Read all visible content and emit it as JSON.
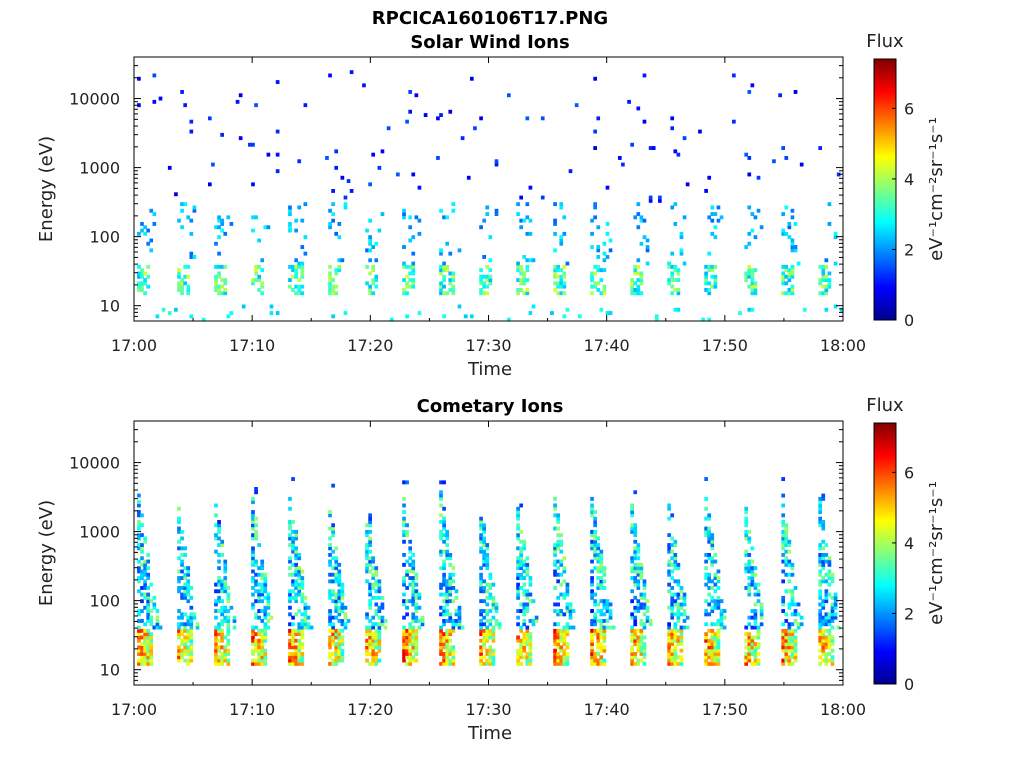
{
  "figure": {
    "title": "RPCICA160106T17.PNG"
  },
  "colorscale": {
    "stops": [
      "#00008f",
      "#0000ff",
      "#0080ff",
      "#00ffff",
      "#80ff80",
      "#ffff00",
      "#ff8000",
      "#ff0000",
      "#800000"
    ]
  },
  "chart_data": [
    {
      "type": "heatmap",
      "title": "Solar Wind Ions",
      "xlabel": "Time",
      "ylabel": "Energy (eV)",
      "x_range": [
        "17:00",
        "18:00"
      ],
      "x_ticks": [
        "17:00",
        "17:10",
        "17:20",
        "17:30",
        "17:40",
        "17:50",
        "18:00"
      ],
      "y_scale": "log",
      "y_range": [
        6,
        40000
      ],
      "y_ticks": [
        10,
        100,
        1000,
        10000
      ],
      "y_tick_labels": [
        "10",
        "100",
        "1000",
        "10000"
      ],
      "colorbar": {
        "title": "Flux",
        "unit": "eV⁻¹cm⁻²sr⁻¹s⁻¹",
        "range": [
          0,
          7.4
        ],
        "ticks": [
          "0",
          "2",
          "4",
          "6"
        ]
      },
      "description_values": {
        "pulse_period_min": 3.2,
        "low_energy_band_eV": [
          15,
          40
        ],
        "low_energy_peak_flux": 4.3,
        "scattered_flux": 1.0
      }
    },
    {
      "type": "heatmap",
      "title": "Cometary Ions",
      "xlabel": "Time",
      "ylabel": "Energy (eV)",
      "x_range": [
        "17:00",
        "18:00"
      ],
      "x_ticks": [
        "17:00",
        "17:10",
        "17:20",
        "17:30",
        "17:40",
        "17:50",
        "18:00"
      ],
      "y_scale": "log",
      "y_range": [
        6,
        40000
      ],
      "y_ticks": [
        10,
        100,
        1000,
        10000
      ],
      "y_tick_labels": [
        "10",
        "100",
        "1000",
        "10000"
      ],
      "colorbar": {
        "title": "Flux",
        "unit": "eV⁻¹cm⁻²sr⁻¹s⁻¹",
        "range": [
          0,
          7.4
        ],
        "ticks": [
          "0",
          "2",
          "4",
          "6"
        ]
      },
      "description_values": {
        "pulse_period_min": 3.2,
        "low_energy_band_eV": [
          12,
          40
        ],
        "low_energy_peak_flux": 6.5,
        "dispersion_top_eV": 4000
      }
    }
  ]
}
